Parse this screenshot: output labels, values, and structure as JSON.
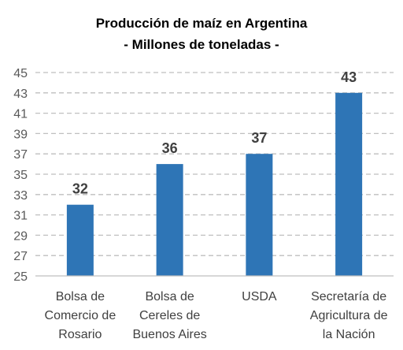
{
  "chart_data": {
    "type": "bar",
    "title": "Producción de maíz en Argentina",
    "subtitle": "- Millones de toneladas -",
    "xlabel": "",
    "ylabel": "",
    "categories": [
      [
        "Bolsa de",
        "Comercio de",
        "Rosario"
      ],
      [
        "Bolsa de",
        "Cereles de",
        "Buenos Aires"
      ],
      [
        "USDA"
      ],
      [
        "Secretaría de",
        "Agricultura de",
        "la Nación"
      ]
    ],
    "values": [
      32,
      36,
      37,
      43
    ],
    "data_labels": [
      "32",
      "36",
      "37",
      "43"
    ],
    "ylim": [
      25,
      45
    ],
    "yticks": [
      25,
      27,
      29,
      31,
      33,
      35,
      37,
      39,
      41,
      43,
      45
    ],
    "grid": true,
    "grid_style": "dashed",
    "legend": "none",
    "colors": {
      "bar": "#2e75b6",
      "grid": "#bfbfbf",
      "axis": "#bfbfbf"
    }
  }
}
